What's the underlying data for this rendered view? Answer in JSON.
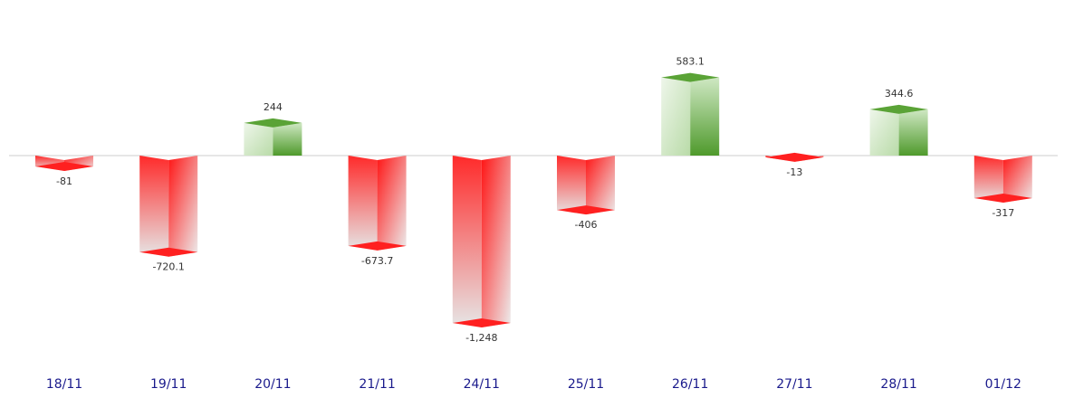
{
  "chart_data": {
    "type": "bar",
    "categories": [
      "18/11",
      "19/11",
      "20/11",
      "21/11",
      "24/11",
      "25/11",
      "26/11",
      "27/11",
      "28/11",
      "01/12"
    ],
    "values": [
      -81,
      -720.1,
      244,
      -673.7,
      -1248,
      -406,
      583.1,
      -13,
      344.6,
      -317
    ],
    "value_labels": [
      "-81",
      "-720.1",
      "244",
      "-673.7",
      "-1,248",
      "-406",
      "583.1",
      "-13",
      "344.6",
      "-317"
    ],
    "title": "",
    "xlabel": "",
    "ylabel": "",
    "grid": false,
    "legend": false,
    "colors": {
      "positive": "#5aa336",
      "negative": "#ff1a1a",
      "axis_line": "#cccccc",
      "category_text": "#1a1a8c",
      "value_text": "#333333"
    }
  }
}
